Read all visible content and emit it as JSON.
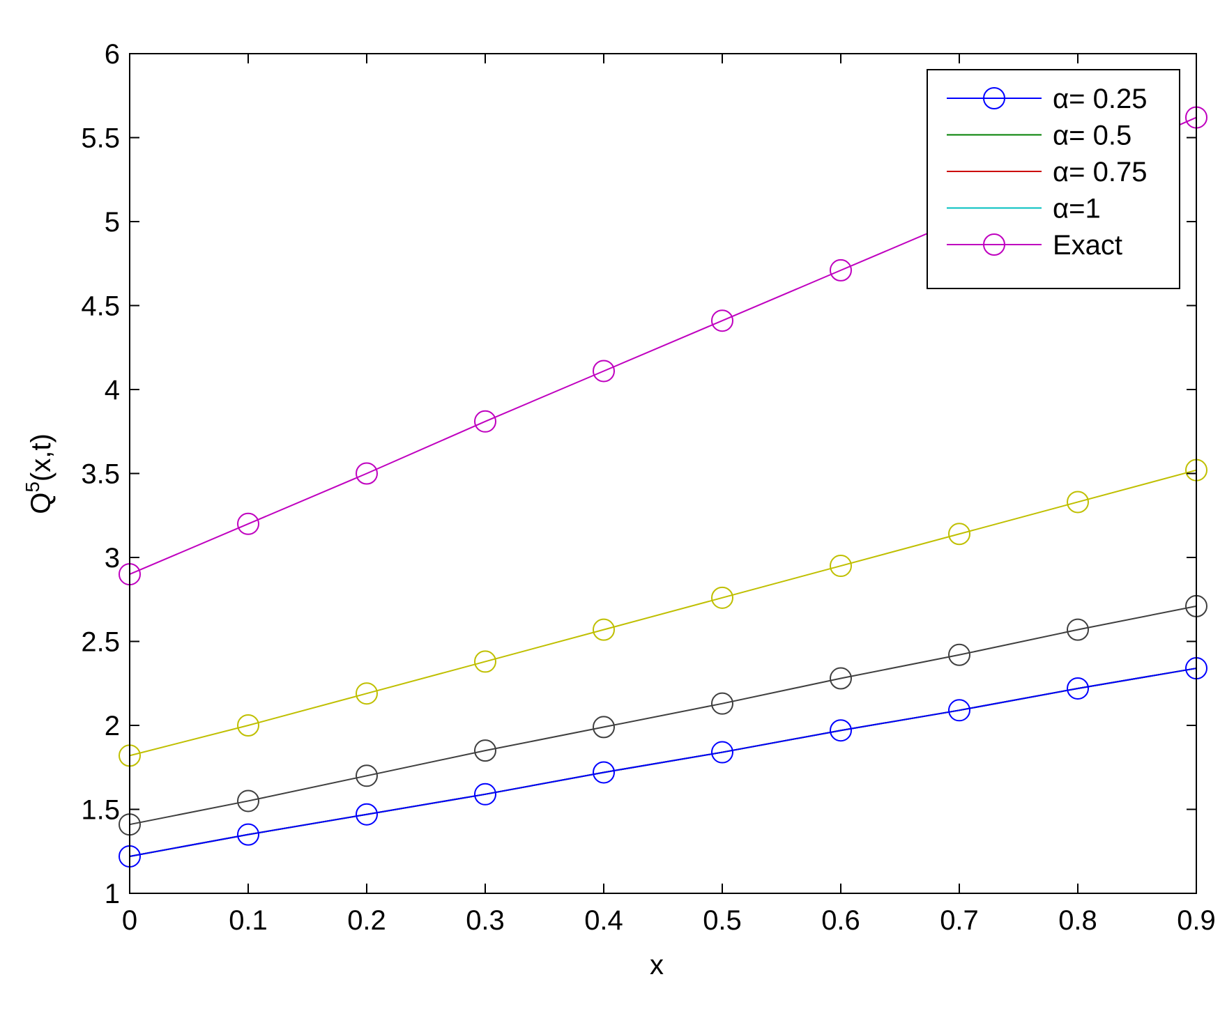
{
  "chart_data": {
    "type": "line",
    "xlabel": "x",
    "ylabel": "Q",
    "ylabel_superscript": "5",
    "ylabel_suffix": "(x,t)",
    "xlim": [
      0,
      0.9
    ],
    "ylim": [
      1,
      6
    ],
    "xticks": [
      "0",
      "0.1",
      "0.2",
      "0.3",
      "0.4",
      "0.5",
      "0.6",
      "0.7",
      "0.8",
      "0.9"
    ],
    "yticks": [
      "1",
      "1.5",
      "2",
      "2.5",
      "3",
      "3.5",
      "4",
      "4.5",
      "5",
      "5.5",
      "6"
    ],
    "grid": false,
    "legend_position": "top-right",
    "x": [
      0,
      0.1,
      0.2,
      0.3,
      0.4,
      0.5,
      0.6,
      0.7,
      0.8,
      0.9
    ],
    "series": [
      {
        "name": "α= 0.25",
        "color": "#0000ff",
        "marker": "circle",
        "in_legend": true,
        "values": [
          1.22,
          1.35,
          1.47,
          1.59,
          1.72,
          1.84,
          1.97,
          2.09,
          2.22,
          2.34
        ]
      },
      {
        "name": "α= 0.5",
        "color": "#007f00",
        "marker": "none",
        "in_legend": true,
        "values": [
          1.22,
          1.35,
          1.47,
          1.59,
          1.72,
          1.84,
          1.97,
          2.09,
          2.22,
          2.34
        ]
      },
      {
        "name": "α= 0.75",
        "color": "#cc0000",
        "marker": "none",
        "in_legend": true,
        "values": [
          1.22,
          1.35,
          1.47,
          1.59,
          1.72,
          1.84,
          1.97,
          2.09,
          2.22,
          2.34
        ]
      },
      {
        "name": "α=1",
        "color": "#00bfbf",
        "marker": "none",
        "in_legend": true,
        "values": [
          1.22,
          1.35,
          1.47,
          1.59,
          1.72,
          1.84,
          1.97,
          2.09,
          2.22,
          2.34
        ]
      },
      {
        "name": "Exact",
        "color": "#bf00bf",
        "marker": "circle",
        "in_legend": true,
        "values": [
          2.9,
          3.2,
          3.5,
          3.81,
          4.11,
          4.41,
          4.71,
          5.01,
          5.31,
          5.62
        ]
      },
      {
        "color": "#bfbf00",
        "marker": "circle",
        "in_legend": false,
        "values": [
          1.82,
          2.0,
          2.19,
          2.38,
          2.57,
          2.76,
          2.95,
          3.14,
          3.33,
          3.52
        ]
      },
      {
        "color": "#3f3f3f",
        "marker": "circle",
        "in_legend": false,
        "values": [
          1.41,
          1.55,
          1.7,
          1.85,
          1.99,
          2.13,
          2.28,
          2.42,
          2.57,
          2.71
        ]
      }
    ]
  }
}
